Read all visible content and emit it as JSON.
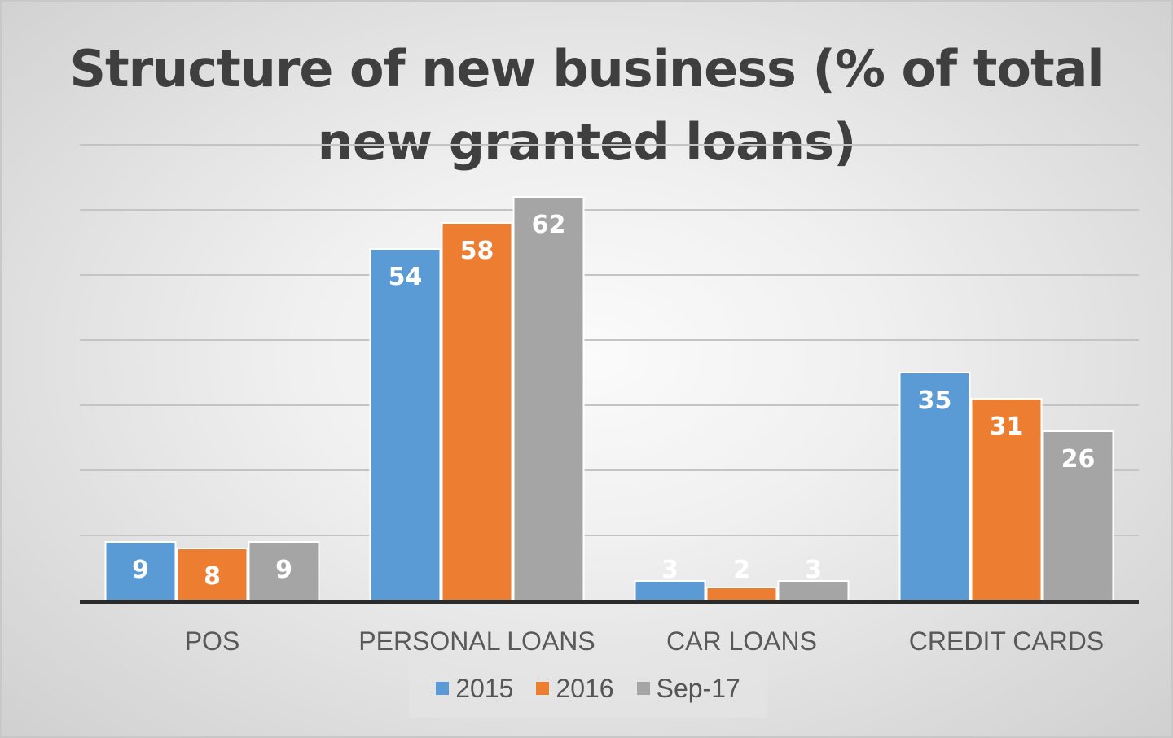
{
  "chart_data": {
    "type": "bar",
    "title_lines": [
      "Structure of new business (% of total",
      "new granted loans)"
    ],
    "categories": [
      "POS",
      "PERSONAL LOANS",
      "CAR LOANS",
      "CREDIT CARDS"
    ],
    "series": [
      {
        "name": "2015",
        "color": "#5b9bd5",
        "values": [
          9,
          54,
          3,
          35
        ]
      },
      {
        "name": "2016",
        "color": "#ed7d31",
        "values": [
          8,
          58,
          2,
          31
        ]
      },
      {
        "name": "Sep-17",
        "color": "#a5a5a5",
        "values": [
          9,
          62,
          3,
          26
        ]
      }
    ],
    "ylim": [
      0,
      70
    ],
    "grid": true,
    "data_labels": true,
    "legend_position": "bottom",
    "xlabel": "",
    "ylabel": ""
  }
}
